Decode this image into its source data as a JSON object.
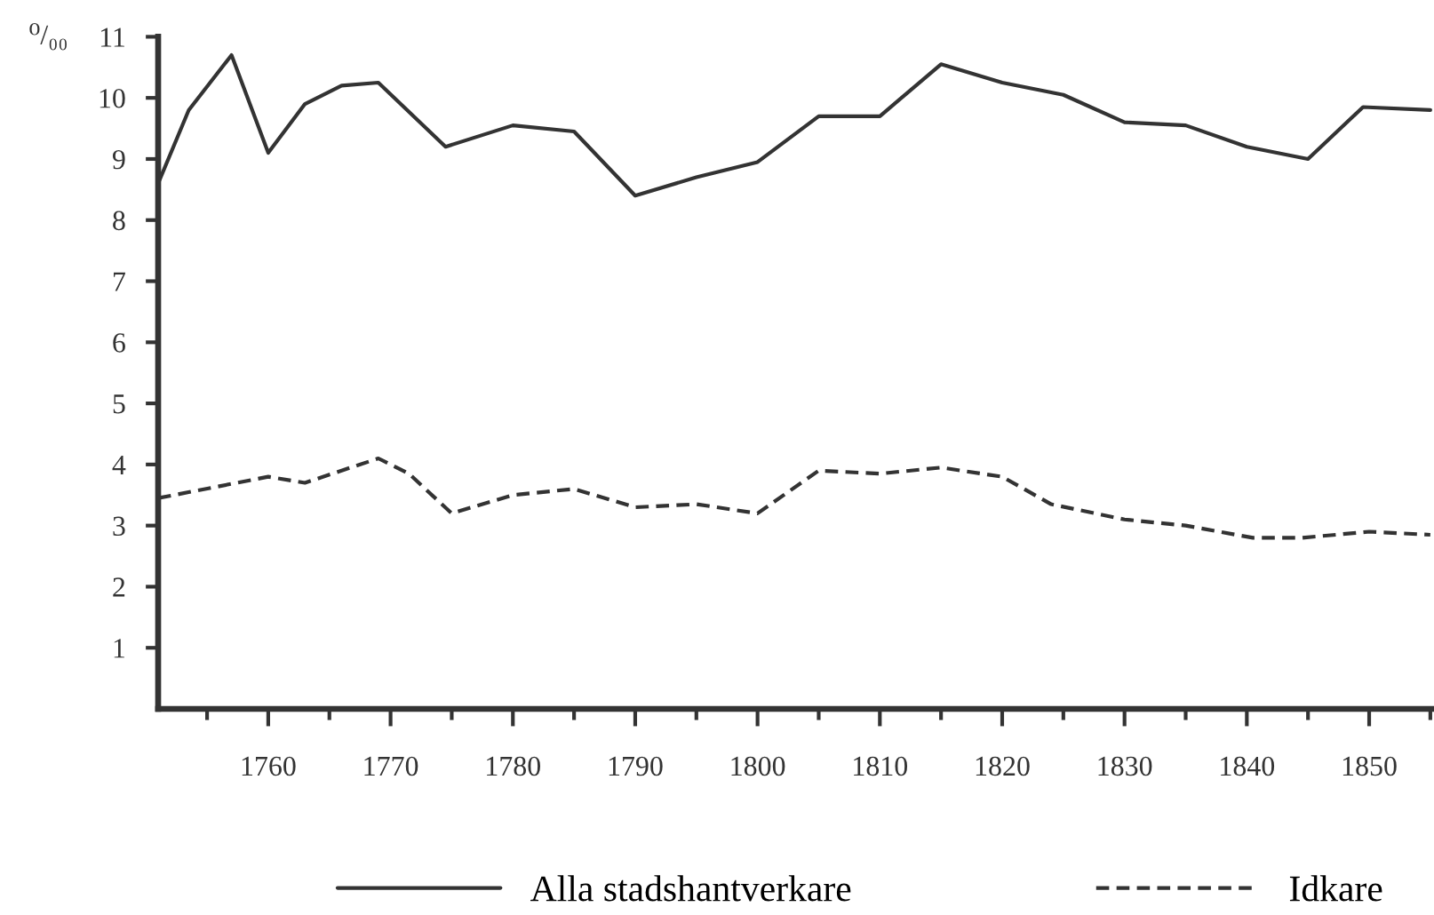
{
  "chart_data": {
    "type": "line",
    "ylabel": "⁰/₀₀",
    "series": [
      {
        "name": "Alla stadshantverkare",
        "color": "#333333",
        "line_style": "solid",
        "x": [
          1751,
          1753.5,
          1757,
          1760,
          1763,
          1766,
          1769,
          1774.5,
          1780,
          1785,
          1790,
          1795,
          1800,
          1805,
          1810,
          1815,
          1820,
          1825,
          1830,
          1835,
          1840,
          1845,
          1849.5,
          1855
        ],
        "values": [
          8.6,
          9.8,
          10.7,
          9.1,
          9.9,
          10.2,
          10.25,
          9.2,
          9.55,
          9.45,
          8.4,
          8.7,
          8.95,
          9.7,
          9.7,
          10.55,
          10.25,
          10.05,
          9.6,
          9.55,
          9.2,
          9.0,
          9.85,
          9.8
        ]
      },
      {
        "name": "Idkare",
        "color": "#333333",
        "line_style": "dashed",
        "x": [
          1751,
          1760,
          1763,
          1769,
          1771.5,
          1775,
          1780,
          1785,
          1790,
          1795,
          1800,
          1805,
          1810,
          1815,
          1820,
          1824,
          1830,
          1835,
          1840.5,
          1844.5,
          1850,
          1855
        ],
        "values": [
          3.45,
          3.8,
          3.7,
          4.1,
          3.85,
          3.2,
          3.5,
          3.6,
          3.3,
          3.35,
          3.2,
          3.9,
          3.85,
          3.95,
          3.8,
          3.35,
          3.1,
          3.0,
          2.8,
          2.8,
          2.9,
          2.85
        ]
      }
    ],
    "xlim": [
      1751,
      1855.3
    ],
    "ylim": [
      0,
      11
    ],
    "xticks": [
      {
        "value": 1755,
        "label": null
      },
      1760,
      {
        "value": 1765,
        "label": null
      },
      1770,
      {
        "value": 1775,
        "label": null
      },
      1780,
      {
        "value": 1785,
        "label": null
      },
      1790,
      {
        "value": 1795,
        "label": null
      },
      1800,
      {
        "value": 1805,
        "label": null
      },
      1810,
      {
        "value": 1815,
        "label": null
      },
      1820,
      {
        "value": 1825,
        "label": null
      },
      1830,
      {
        "value": 1835,
        "label": null
      },
      1840,
      {
        "value": 1845,
        "label": null
      },
      1850,
      {
        "value": 1855,
        "label": null
      }
    ],
    "yticks": [
      1,
      2,
      3,
      4,
      5,
      6,
      7,
      8,
      9,
      10,
      11
    ],
    "legend": "bottom"
  }
}
